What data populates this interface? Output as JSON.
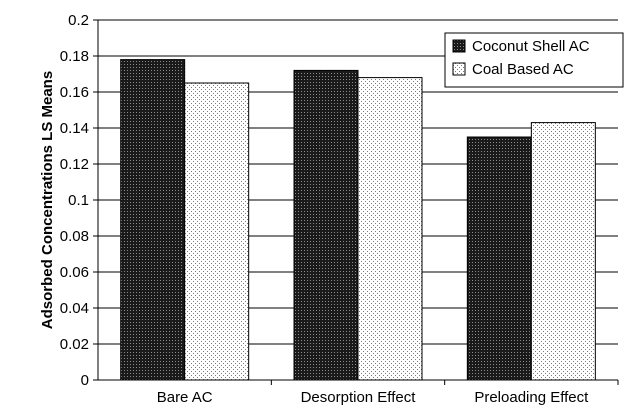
{
  "chart_data": {
    "type": "bar",
    "title": "",
    "xlabel": "",
    "ylabel": "Adsorbed Concentrations LS Means",
    "categories": [
      "Bare AC",
      "Desorption Effect",
      "Preloading Effect"
    ],
    "series": [
      {
        "name": "Coconut Shell AC",
        "values": [
          0.178,
          0.172,
          0.135
        ],
        "pattern": "dense-dark"
      },
      {
        "name": "Coal Based AC",
        "values": [
          0.165,
          0.168,
          0.143
        ],
        "pattern": "sparse-dots"
      }
    ],
    "ylim": [
      0,
      0.2
    ],
    "yticks": [
      "0",
      "0.02",
      "0.04",
      "0.06",
      "0.08",
      "0.1",
      "0.12",
      "0.14",
      "0.16",
      "0.18",
      "0.2"
    ],
    "grid": true,
    "legend_position": "top-right",
    "colors": {
      "bar_outline": "#000000",
      "dark_fill": "#1a1a1a",
      "grid": "#000000"
    }
  }
}
